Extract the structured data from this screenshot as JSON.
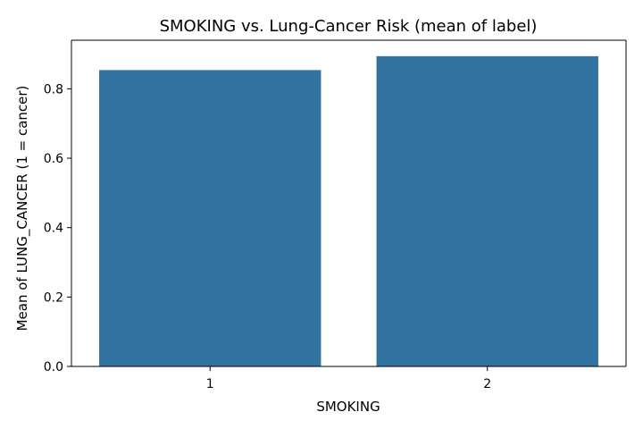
{
  "chart_data": {
    "type": "bar",
    "title": "SMOKING vs. Lung-Cancer Risk (mean of label)",
    "xlabel": "SMOKING",
    "ylabel": "Mean of LUNG_CANCER (1 = cancer)",
    "categories": [
      "1",
      "2"
    ],
    "values": [
      0.854,
      0.894
    ],
    "ylim": [
      0,
      0.94
    ],
    "yticks": [
      0.0,
      0.2,
      0.4,
      0.6,
      0.8
    ],
    "ytick_labels": [
      "0.0",
      "0.2",
      "0.4",
      "0.6",
      "0.8"
    ],
    "bar_color": "#3274a1",
    "grid": false,
    "legend": "none"
  }
}
